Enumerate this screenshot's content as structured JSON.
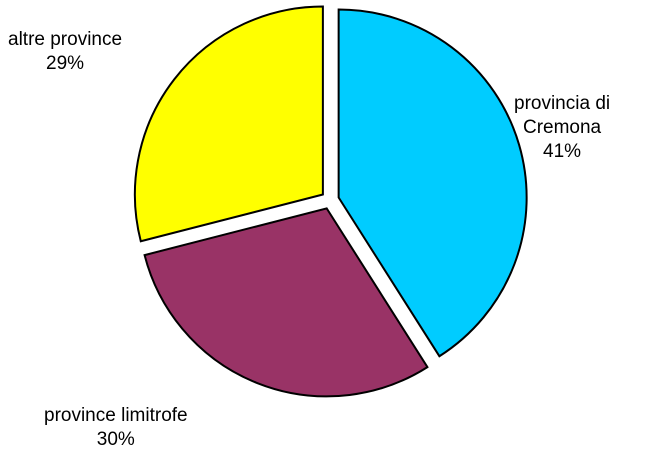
{
  "chart_data": {
    "type": "pie",
    "title": "",
    "legend": "none",
    "slices": [
      {
        "label_lines": [
          "provincia di",
          "Cremona"
        ],
        "value": 41,
        "value_label": "41%",
        "color": "#00ccff"
      },
      {
        "label_lines": [
          "province limitrofe"
        ],
        "value": 30,
        "value_label": "30%",
        "color": "#993366"
      },
      {
        "label_lines": [
          "altre province"
        ],
        "value": 29,
        "value_label": "29%",
        "color": "#ffff00"
      }
    ]
  }
}
